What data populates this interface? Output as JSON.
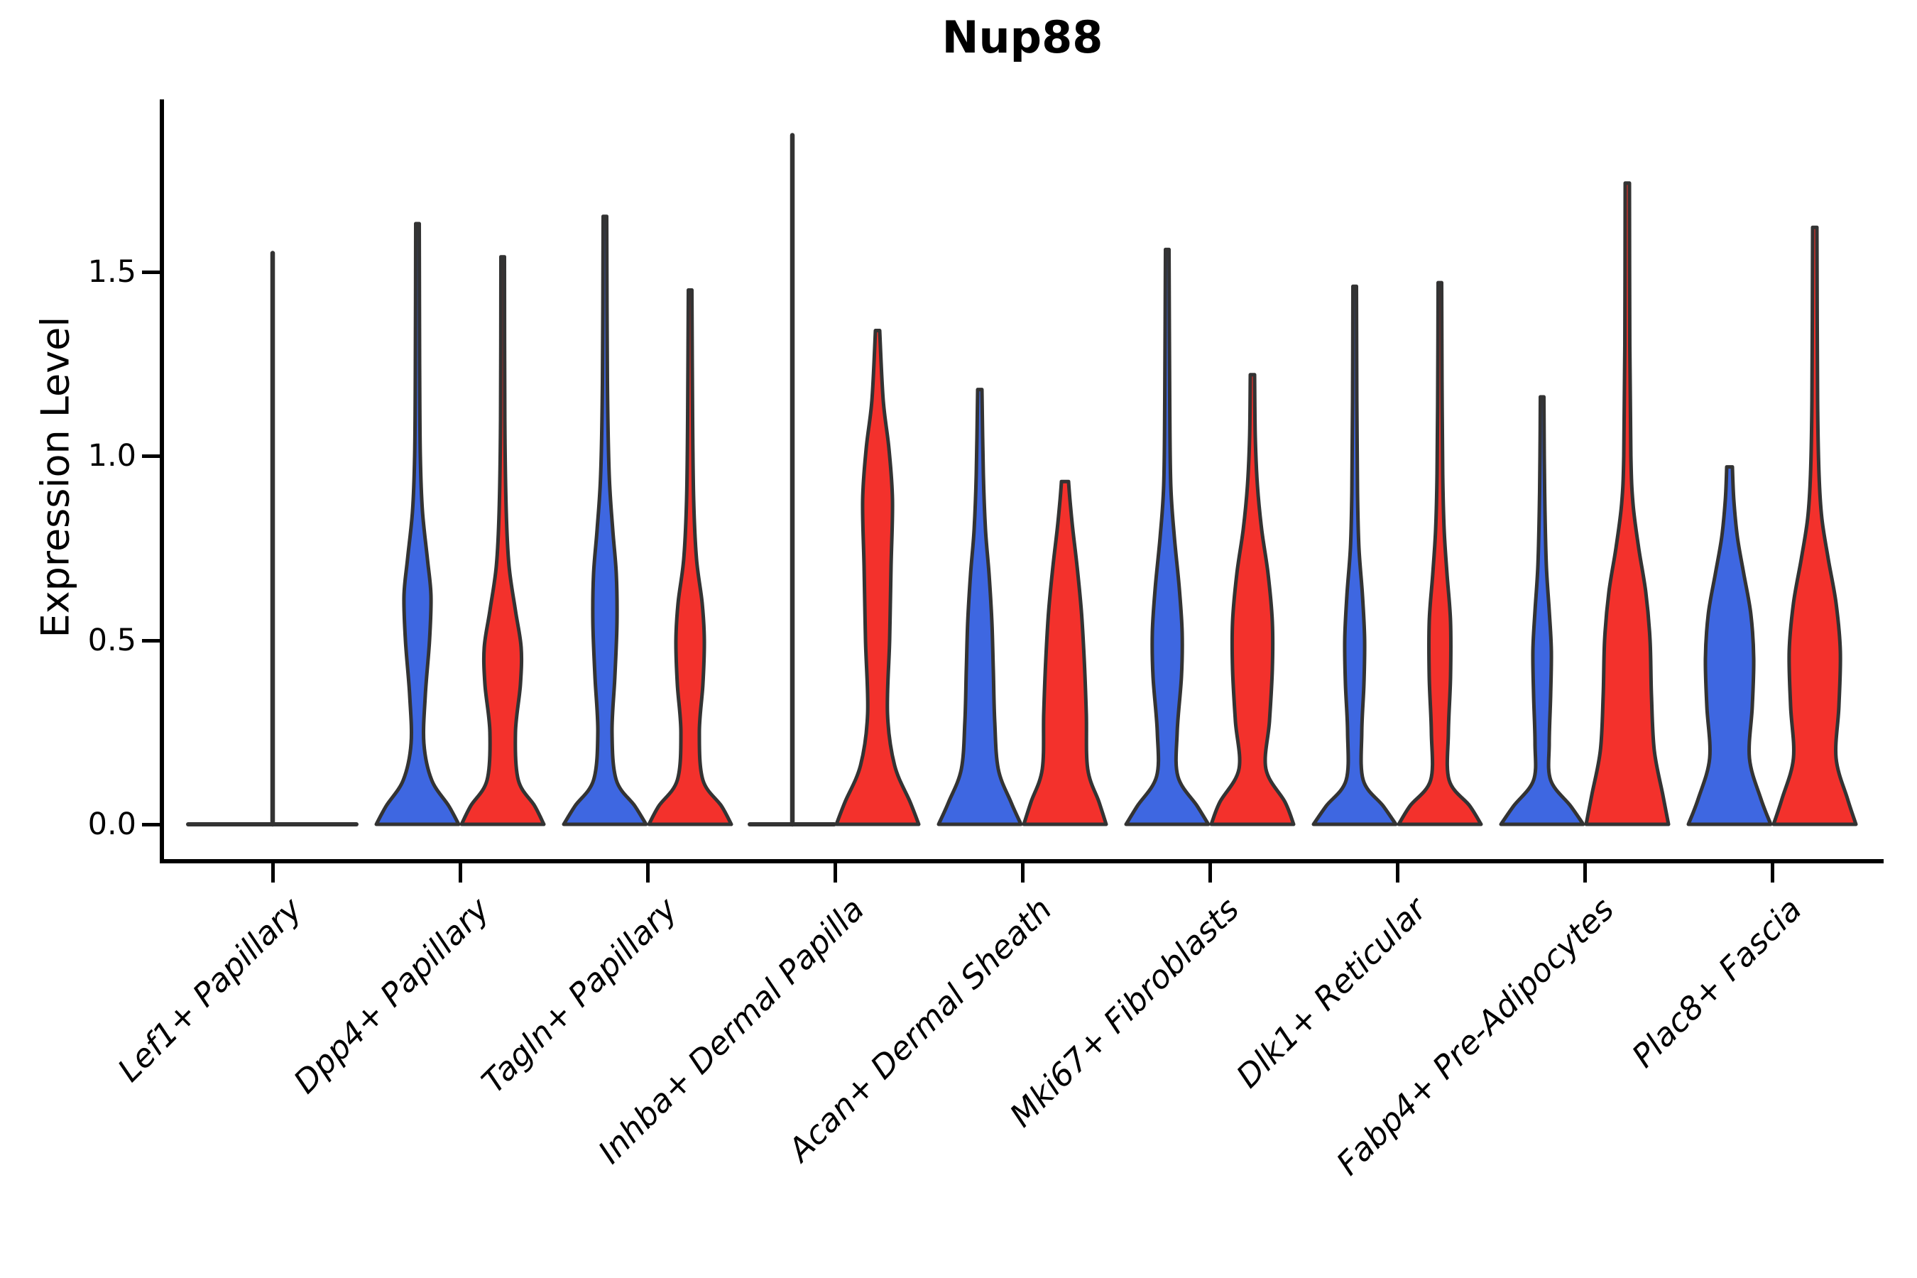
{
  "title": "Nup88",
  "axes": {
    "ylabel": "Expression Level",
    "yticks": [
      {
        "value": 0.0,
        "label": "0.0"
      },
      {
        "value": 0.5,
        "label": "0.5"
      },
      {
        "value": 1.0,
        "label": "1.0"
      },
      {
        "value": 1.5,
        "label": "1.5"
      }
    ],
    "categories": [
      "Lef1+ Papillary",
      "Dpp4+ Papillary",
      "Tagln+ Papillary",
      "Inhba+ Dermal Papilla",
      "Acan+ Dermal Sheath",
      "Mki67+ Fibroblasts",
      "Dlk1+ Reticular",
      "Fabp4+ Pre-Adipocytes",
      "Plac8+ Fascia"
    ]
  },
  "colors": {
    "blue": "#3E67E1",
    "red": "#F3312C",
    "outline": "#333333",
    "axis": "#000000",
    "background": "#ffffff"
  },
  "chart_data": {
    "type": "violin",
    "title": "Nup88",
    "xlabel": "",
    "ylabel": "Expression Level",
    "ylim": [
      0,
      1.97
    ],
    "yticks": [
      0,
      0.5,
      1.0,
      1.5
    ],
    "grid": false,
    "legend": "none",
    "categories": [
      "Lef1+ Papillary",
      "Dpp4+ Papillary",
      "Tagln+ Papillary",
      "Inhba+ Dermal Papilla",
      "Acan+ Dermal Sheath",
      "Mki67+ Fibroblasts",
      "Dlk1+ Reticular",
      "Fabp4+ Pre-Adipocytes",
      "Plac8+ Fascia"
    ],
    "series": [
      {
        "name": "blue",
        "color": "#3E67E1",
        "max_expression": [
          1.55,
          1.63,
          1.65,
          1.87,
          1.18,
          1.56,
          1.46,
          1.16,
          0.97
        ],
        "all_zero_flat": [
          true,
          false,
          false,
          true,
          false,
          false,
          false,
          false,
          false
        ]
      },
      {
        "name": "red",
        "color": "#F3312C",
        "max_expression": [
          1.55,
          1.54,
          1.45,
          1.34,
          0.93,
          1.22,
          1.47,
          1.74,
          1.62
        ],
        "all_zero_flat": [
          true,
          false,
          false,
          false,
          false,
          false,
          false,
          false,
          false
        ]
      }
    ],
    "violins": [
      {
        "category_index": 0,
        "side": "both",
        "type": "flat",
        "color": "outline",
        "offset": 0,
        "flat_halfspan": 119,
        "spike_top": 1.55
      },
      {
        "category_index": 1,
        "side": "blue",
        "type": "violin",
        "color": "blue",
        "offset": -60,
        "top": 1.63,
        "profile": [
          [
            0,
            58
          ],
          [
            0.05,
            44
          ],
          [
            0.12,
            20
          ],
          [
            0.22,
            9
          ],
          [
            0.35,
            11
          ],
          [
            0.5,
            17
          ],
          [
            0.62,
            19
          ],
          [
            0.72,
            14
          ],
          [
            0.85,
            7
          ],
          [
            1.0,
            4
          ],
          [
            1.25,
            3
          ],
          [
            1.63,
            2.5
          ]
        ]
      },
      {
        "category_index": 1,
        "side": "red",
        "type": "violin",
        "color": "red",
        "offset": 60,
        "top": 1.54,
        "profile": [
          [
            0,
            58
          ],
          [
            0.05,
            45
          ],
          [
            0.12,
            22
          ],
          [
            0.25,
            18
          ],
          [
            0.38,
            25
          ],
          [
            0.48,
            26
          ],
          [
            0.58,
            18
          ],
          [
            0.7,
            9
          ],
          [
            0.85,
            5
          ],
          [
            1.1,
            3
          ],
          [
            1.54,
            2.5
          ]
        ]
      },
      {
        "category_index": 2,
        "side": "blue",
        "type": "violin",
        "color": "blue",
        "offset": -60,
        "top": 1.65,
        "profile": [
          [
            0,
            58
          ],
          [
            0.05,
            42
          ],
          [
            0.12,
            16
          ],
          [
            0.25,
            10
          ],
          [
            0.4,
            14
          ],
          [
            0.55,
            17
          ],
          [
            0.68,
            16
          ],
          [
            0.8,
            11
          ],
          [
            0.95,
            6
          ],
          [
            1.2,
            3.5
          ],
          [
            1.65,
            2.5
          ]
        ]
      },
      {
        "category_index": 2,
        "side": "red",
        "type": "violin",
        "color": "red",
        "offset": 60,
        "top": 1.45,
        "profile": [
          [
            0,
            58
          ],
          [
            0.05,
            44
          ],
          [
            0.12,
            18
          ],
          [
            0.25,
            13
          ],
          [
            0.38,
            18
          ],
          [
            0.5,
            20
          ],
          [
            0.6,
            17
          ],
          [
            0.72,
            9
          ],
          [
            0.88,
            5
          ],
          [
            1.1,
            3.5
          ],
          [
            1.45,
            2.5
          ]
        ]
      },
      {
        "category_index": 3,
        "side": "blue",
        "type": "flat",
        "color": "outline",
        "offset": -60,
        "flat_halfspan": 60,
        "spike_top": 1.87
      },
      {
        "category_index": 3,
        "side": "red",
        "type": "violin",
        "color": "red",
        "offset": 60,
        "top": 1.34,
        "profile": [
          [
            0,
            58
          ],
          [
            0.06,
            46
          ],
          [
            0.16,
            24
          ],
          [
            0.3,
            14
          ],
          [
            0.5,
            17
          ],
          [
            0.7,
            19
          ],
          [
            0.88,
            21
          ],
          [
            1.02,
            16
          ],
          [
            1.15,
            8
          ],
          [
            1.34,
            3
          ]
        ]
      },
      {
        "category_index": 4,
        "side": "blue",
        "type": "violin",
        "color": "blue",
        "offset": -60,
        "top": 1.18,
        "profile": [
          [
            0,
            58
          ],
          [
            0.06,
            44
          ],
          [
            0.15,
            26
          ],
          [
            0.28,
            21
          ],
          [
            0.42,
            19
          ],
          [
            0.55,
            17
          ],
          [
            0.68,
            13
          ],
          [
            0.8,
            8
          ],
          [
            0.95,
            5
          ],
          [
            1.18,
            3
          ]
        ]
      },
      {
        "category_index": 4,
        "side": "red",
        "type": "violin",
        "color": "red",
        "offset": 60,
        "top": 0.93,
        "profile": [
          [
            0,
            58
          ],
          [
            0.06,
            48
          ],
          [
            0.15,
            32
          ],
          [
            0.3,
            30
          ],
          [
            0.45,
            27
          ],
          [
            0.58,
            23
          ],
          [
            0.7,
            17
          ],
          [
            0.8,
            11
          ],
          [
            0.88,
            7
          ],
          [
            0.93,
            5
          ]
        ]
      },
      {
        "category_index": 5,
        "side": "blue",
        "type": "violin",
        "color": "blue",
        "offset": -60,
        "top": 1.56,
        "profile": [
          [
            0,
            58
          ],
          [
            0.05,
            42
          ],
          [
            0.13,
            15
          ],
          [
            0.25,
            14
          ],
          [
            0.4,
            20
          ],
          [
            0.52,
            21
          ],
          [
            0.64,
            17
          ],
          [
            0.78,
            10
          ],
          [
            0.92,
            5
          ],
          [
            1.15,
            3.5
          ],
          [
            1.56,
            2.5
          ]
        ]
      },
      {
        "category_index": 5,
        "side": "red",
        "type": "violin",
        "color": "red",
        "offset": 60,
        "top": 1.22,
        "profile": [
          [
            0,
            58
          ],
          [
            0.06,
            46
          ],
          [
            0.15,
            19
          ],
          [
            0.28,
            24
          ],
          [
            0.42,
            28
          ],
          [
            0.55,
            28
          ],
          [
            0.68,
            22
          ],
          [
            0.8,
            13
          ],
          [
            0.92,
            7
          ],
          [
            1.05,
            4
          ],
          [
            1.22,
            3
          ]
        ]
      },
      {
        "category_index": 6,
        "side": "blue",
        "type": "violin",
        "color": "blue",
        "offset": -60,
        "top": 1.46,
        "profile": [
          [
            0,
            58
          ],
          [
            0.05,
            40
          ],
          [
            0.12,
            12
          ],
          [
            0.25,
            10
          ],
          [
            0.38,
            13
          ],
          [
            0.5,
            14
          ],
          [
            0.62,
            11
          ],
          [
            0.75,
            6
          ],
          [
            0.9,
            4
          ],
          [
            1.15,
            3
          ],
          [
            1.46,
            2.5
          ]
        ]
      },
      {
        "category_index": 6,
        "side": "red",
        "type": "violin",
        "color": "red",
        "offset": 60,
        "top": 1.47,
        "profile": [
          [
            0,
            58
          ],
          [
            0.05,
            42
          ],
          [
            0.12,
            13
          ],
          [
            0.25,
            12
          ],
          [
            0.4,
            15
          ],
          [
            0.55,
            15
          ],
          [
            0.68,
            10
          ],
          [
            0.8,
            6
          ],
          [
            0.95,
            4
          ],
          [
            1.2,
            3
          ],
          [
            1.47,
            2.5
          ]
        ]
      },
      {
        "category_index": 7,
        "side": "blue",
        "type": "violin",
        "color": "blue",
        "offset": -60,
        "top": 1.16,
        "profile": [
          [
            0,
            58
          ],
          [
            0.05,
            40
          ],
          [
            0.12,
            12
          ],
          [
            0.22,
            10
          ],
          [
            0.35,
            12
          ],
          [
            0.47,
            13
          ],
          [
            0.58,
            10
          ],
          [
            0.7,
            6
          ],
          [
            0.85,
            4
          ],
          [
            1.0,
            3
          ],
          [
            1.16,
            2.5
          ]
        ]
      },
      {
        "category_index": 7,
        "side": "red",
        "type": "violin",
        "color": "red",
        "offset": 60,
        "top": 1.74,
        "profile": [
          [
            0,
            58
          ],
          [
            0.08,
            50
          ],
          [
            0.2,
            38
          ],
          [
            0.35,
            34
          ],
          [
            0.5,
            32
          ],
          [
            0.63,
            26
          ],
          [
            0.75,
            16
          ],
          [
            0.87,
            8
          ],
          [
            1.0,
            5
          ],
          [
            1.3,
            3.5
          ],
          [
            1.74,
            3
          ]
        ]
      },
      {
        "category_index": 8,
        "side": "blue",
        "type": "violin",
        "color": "blue",
        "offset": -60,
        "top": 0.97,
        "profile": [
          [
            0,
            58
          ],
          [
            0.07,
            44
          ],
          [
            0.18,
            28
          ],
          [
            0.32,
            32
          ],
          [
            0.45,
            34
          ],
          [
            0.57,
            30
          ],
          [
            0.68,
            20
          ],
          [
            0.78,
            11
          ],
          [
            0.88,
            6
          ],
          [
            0.97,
            4
          ]
        ]
      },
      {
        "category_index": 8,
        "side": "red",
        "type": "violin",
        "color": "red",
        "offset": 60,
        "top": 1.62,
        "profile": [
          [
            0,
            58
          ],
          [
            0.07,
            46
          ],
          [
            0.18,
            30
          ],
          [
            0.32,
            34
          ],
          [
            0.47,
            36
          ],
          [
            0.6,
            30
          ],
          [
            0.72,
            19
          ],
          [
            0.83,
            10
          ],
          [
            0.95,
            6
          ],
          [
            1.15,
            4
          ],
          [
            1.62,
            3
          ]
        ]
      }
    ]
  }
}
